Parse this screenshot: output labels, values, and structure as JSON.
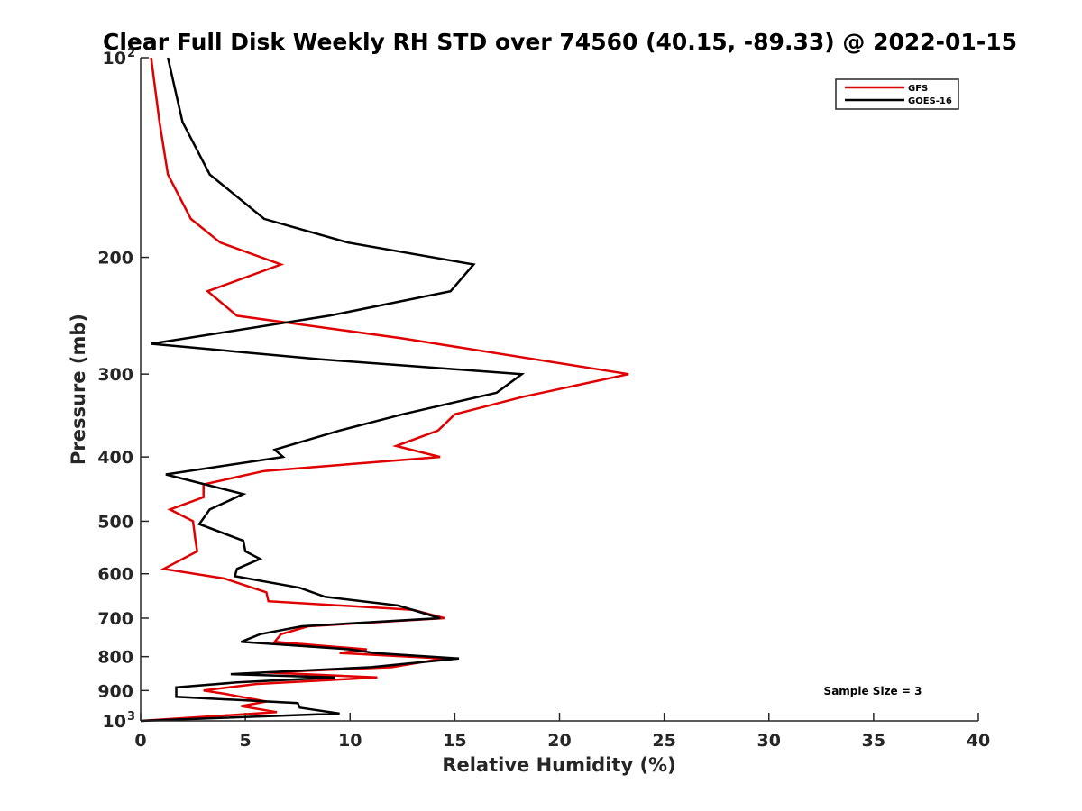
{
  "chart_data": {
    "type": "line",
    "title": "Clear Full Disk Weekly RH STD over 74560 (40.15, -89.33) @ 2022-01-15",
    "xlabel": "Relative Humidity (%)",
    "ylabel": "Pressure (mb)",
    "xlim": [
      0,
      40
    ],
    "ylim": [
      100,
      1000
    ],
    "y_scale": "log",
    "y_reversed": true,
    "x_ticks": [
      "0",
      "5",
      "10",
      "15",
      "20",
      "25",
      "30",
      "35",
      "40"
    ],
    "y_ticks": [
      {
        "value": 100,
        "base": "10",
        "exp": "2"
      },
      {
        "value": 200,
        "label": "200"
      },
      {
        "value": 300,
        "label": "300"
      },
      {
        "value": 400,
        "label": "400"
      },
      {
        "value": 500,
        "label": "500"
      },
      {
        "value": 600,
        "label": "600"
      },
      {
        "value": 700,
        "label": "700"
      },
      {
        "value": 800,
        "label": "800"
      },
      {
        "value": 900,
        "label": "900"
      },
      {
        "value": 1000,
        "base": "10",
        "exp": "3"
      }
    ],
    "grid": false,
    "legend_position": "top-right",
    "annotation": "Sample Size = 3",
    "series": [
      {
        "name": "GFS",
        "color": "#e00000",
        "points": [
          [
            0.5,
            100
          ],
          [
            0.9,
            125
          ],
          [
            1.3,
            150
          ],
          [
            2.4,
            175
          ],
          [
            3.8,
            190
          ],
          [
            6.7,
            205
          ],
          [
            3.2,
            225
          ],
          [
            4.6,
            245
          ],
          [
            12.5,
            265
          ],
          [
            23.3,
            300
          ],
          [
            18.2,
            325
          ],
          [
            15.0,
            345
          ],
          [
            14.2,
            365
          ],
          [
            12.2,
            385
          ],
          [
            14.3,
            400
          ],
          [
            5.9,
            420
          ],
          [
            3.0,
            440
          ],
          [
            3.0,
            460
          ],
          [
            1.4,
            480
          ],
          [
            2.5,
            500
          ],
          [
            2.6,
            530
          ],
          [
            2.7,
            555
          ],
          [
            1.1,
            590
          ],
          [
            4.0,
            610
          ],
          [
            6.0,
            640
          ],
          [
            6.1,
            660
          ],
          [
            13.0,
            680
          ],
          [
            14.5,
            700
          ],
          [
            8.0,
            720
          ],
          [
            6.7,
            740
          ],
          [
            6.4,
            760
          ],
          [
            10.8,
            780
          ],
          [
            9.5,
            790
          ],
          [
            14.5,
            805
          ],
          [
            12.0,
            830
          ],
          [
            6.0,
            845
          ],
          [
            11.3,
            860
          ],
          [
            5.5,
            880
          ],
          [
            3.0,
            900
          ],
          [
            4.0,
            910
          ],
          [
            6.0,
            935
          ],
          [
            4.8,
            950
          ],
          [
            6.5,
            970
          ],
          [
            0,
            1000
          ]
        ]
      },
      {
        "name": "GOES-16",
        "color": "#000000",
        "points": [
          [
            1.3,
            100
          ],
          [
            2.0,
            125
          ],
          [
            3.3,
            150
          ],
          [
            5.9,
            175
          ],
          [
            9.9,
            190
          ],
          [
            15.9,
            205
          ],
          [
            14.8,
            225
          ],
          [
            9.0,
            245
          ],
          [
            0.5,
            270
          ],
          [
            8.6,
            285
          ],
          [
            18.2,
            300
          ],
          [
            17.0,
            320
          ],
          [
            12.5,
            345
          ],
          [
            9.5,
            365
          ],
          [
            6.4,
            390
          ],
          [
            6.8,
            400
          ],
          [
            1.2,
            425
          ],
          [
            4.9,
            455
          ],
          [
            3.3,
            480
          ],
          [
            2.8,
            505
          ],
          [
            4.9,
            535
          ],
          [
            5.0,
            555
          ],
          [
            5.7,
            570
          ],
          [
            4.6,
            590
          ],
          [
            4.5,
            605
          ],
          [
            7.6,
            630
          ],
          [
            8.8,
            650
          ],
          [
            12.3,
            670
          ],
          [
            14.3,
            700
          ],
          [
            7.7,
            720
          ],
          [
            5.7,
            740
          ],
          [
            4.8,
            760
          ],
          [
            10.0,
            780
          ],
          [
            11.2,
            790
          ],
          [
            15.2,
            805
          ],
          [
            11.0,
            830
          ],
          [
            4.3,
            850
          ],
          [
            9.3,
            860
          ],
          [
            4.6,
            875
          ],
          [
            1.7,
            890
          ],
          [
            1.7,
            920
          ],
          [
            7.5,
            940
          ],
          [
            7.6,
            955
          ],
          [
            9.5,
            975
          ],
          [
            0,
            1000
          ]
        ]
      }
    ]
  }
}
